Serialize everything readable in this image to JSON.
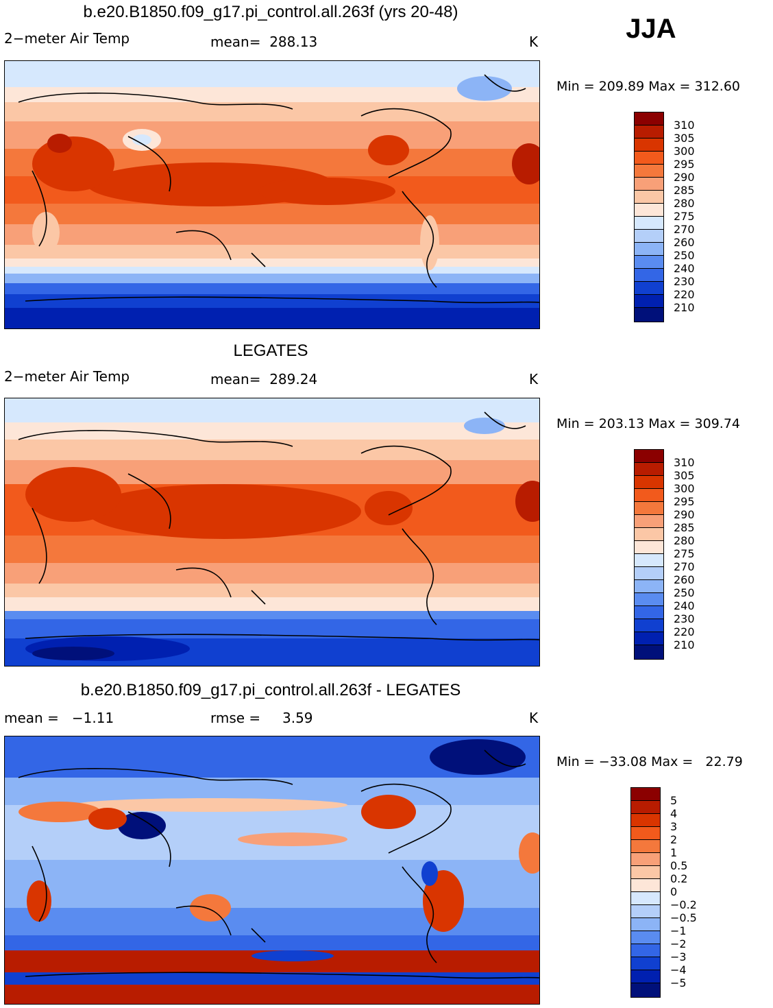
{
  "season": "JJA",
  "panels": [
    {
      "title": "b.e20.B1850.f09_g17.pi_control.all.263f (yrs 20-48)",
      "left_label": "2−meter Air Temp",
      "mid_label": "mean=  288.13",
      "right_label": "K",
      "minmax": "Min = 209.89 Max = 312.60",
      "scale_levels": [
        "310",
        "305",
        "300",
        "295",
        "290",
        "285",
        "280",
        "275",
        "270",
        "260",
        "250",
        "240",
        "230",
        "220",
        "210"
      ],
      "scale_colors": [
        "#8b0000",
        "#b81c00",
        "#d93500",
        "#f25a1c",
        "#f4783c",
        "#f8a078",
        "#fbc7a6",
        "#fde6d8",
        "#d6e8fd",
        "#b4cff9",
        "#8cb4f6",
        "#5a8cf0",
        "#3366e6",
        "#1040d0",
        "#0020b0",
        "#00107a"
      ]
    },
    {
      "title": "LEGATES",
      "left_label": "2−meter Air Temp",
      "mid_label": "mean=  289.24",
      "right_label": "K",
      "minmax": "Min = 203.13 Max = 309.74",
      "scale_levels": [
        "310",
        "305",
        "300",
        "295",
        "290",
        "285",
        "280",
        "275",
        "270",
        "260",
        "250",
        "240",
        "230",
        "220",
        "210"
      ],
      "scale_colors": [
        "#8b0000",
        "#b81c00",
        "#d93500",
        "#f25a1c",
        "#f4783c",
        "#f8a078",
        "#fbc7a6",
        "#fde6d8",
        "#d6e8fd",
        "#b4cff9",
        "#8cb4f6",
        "#5a8cf0",
        "#3366e6",
        "#1040d0",
        "#0020b0",
        "#00107a"
      ]
    },
    {
      "title": "b.e20.B1850.f09_g17.pi_control.all.263f - LEGATES",
      "left_label": "mean =   −1.11",
      "mid_label": "rmse =     3.59",
      "right_label": "K",
      "minmax": "Min = −33.08 Max =   22.79",
      "scale_levels": [
        "5",
        "4",
        "3",
        "2",
        "1",
        "0.5",
        "0.2",
        "0",
        "−0.2",
        "−0.5",
        "−1",
        "−2",
        "−3",
        "−4",
        "−5"
      ],
      "scale_colors": [
        "#8b0000",
        "#b81c00",
        "#d93500",
        "#f25a1c",
        "#f4783c",
        "#f8a078",
        "#fbc7a6",
        "#fde6d8",
        "#d6e8fd",
        "#b4cff9",
        "#8cb4f6",
        "#5a8cf0",
        "#3366e6",
        "#1040d0",
        "#0020b0",
        "#00107a"
      ]
    }
  ]
}
